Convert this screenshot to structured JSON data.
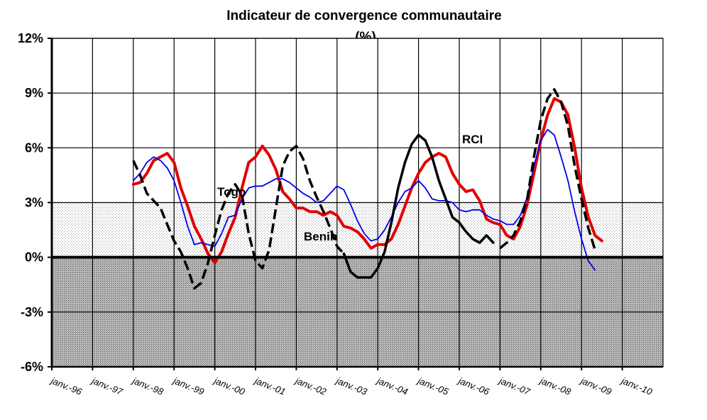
{
  "chart_data": {
    "type": "line",
    "title": "Indicateur de convergence communautaire",
    "subtitle": "(%)",
    "xlabel": "",
    "ylabel": "",
    "x_range": [
      "1996-01",
      "2010-04"
    ],
    "ylim": [
      -6,
      12
    ],
    "yticks": [
      12,
      9,
      6,
      3,
      0,
      -3,
      -6
    ],
    "ytick_labels": [
      "12%",
      "9%",
      "6%",
      "3%",
      "0%",
      "-3%",
      "-6%"
    ],
    "xtick_labels": [
      "janv.-96",
      "janv.-97",
      "janv.-98",
      "janv.-99",
      "janv.-00",
      "janv.-01",
      "janv.-02",
      "janv.-03",
      "janv.-04",
      "janv.-05",
      "janv.-06",
      "janv.-07",
      "janv.-08",
      "janv.-09",
      "janv.-10"
    ],
    "grid": "vertical lines at each year, horizontal lines at each 3%",
    "shaded_bands": [
      {
        "from": 0,
        "to": 3,
        "style": "light dotted"
      },
      {
        "from": -6,
        "to": 0,
        "style": "dark dotted"
      }
    ],
    "annotations": [
      {
        "text": "Togo",
        "series": "black dashed"
      },
      {
        "text": "Benin",
        "series": "red"
      },
      {
        "text": "RCI",
        "series": "black solid"
      }
    ],
    "series": [
      {
        "name": "",
        "color": "#e00000",
        "style": "solid-thick",
        "points": [
          [
            "1998-01",
            4.0
          ],
          [
            "1998-03",
            4.1
          ],
          [
            "1998-05",
            4.6
          ],
          [
            "1998-07",
            5.3
          ],
          [
            "1998-09",
            5.5
          ],
          [
            "1998-11",
            5.7
          ],
          [
            "1999-01",
            5.2
          ],
          [
            "1999-03",
            3.8
          ],
          [
            "1999-05",
            2.8
          ],
          [
            "1999-07",
            1.7
          ],
          [
            "1999-09",
            1.0
          ],
          [
            "1999-11",
            0.2
          ],
          [
            "2000-01",
            -0.3
          ],
          [
            "2000-03",
            0.3
          ],
          [
            "2000-05",
            1.3
          ],
          [
            "2000-07",
            2.2
          ],
          [
            "2000-09",
            3.8
          ],
          [
            "2000-11",
            5.2
          ],
          [
            "2001-01",
            5.5
          ],
          [
            "2001-03",
            6.1
          ],
          [
            "2001-05",
            5.6
          ],
          [
            "2001-07",
            4.8
          ],
          [
            "2001-09",
            3.6
          ],
          [
            "2001-11",
            3.2
          ],
          [
            "2002-01",
            2.7
          ],
          [
            "2002-03",
            2.7
          ],
          [
            "2002-05",
            2.5
          ],
          [
            "2002-07",
            2.5
          ],
          [
            "2002-09",
            2.3
          ],
          [
            "2002-11",
            2.5
          ],
          [
            "2003-01",
            2.3
          ],
          [
            "2003-03",
            1.7
          ],
          [
            "2003-05",
            1.6
          ],
          [
            "2003-07",
            1.4
          ],
          [
            "2003-09",
            1.0
          ],
          [
            "2003-11",
            0.5
          ],
          [
            "2004-01",
            0.7
          ],
          [
            "2004-03",
            0.7
          ],
          [
            "2004-05",
            1.0
          ],
          [
            "2004-07",
            1.8
          ],
          [
            "2004-09",
            2.8
          ],
          [
            "2004-11",
            3.8
          ],
          [
            "2005-01",
            4.6
          ],
          [
            "2005-03",
            5.2
          ],
          [
            "2005-05",
            5.5
          ],
          [
            "2005-07",
            5.7
          ],
          [
            "2005-09",
            5.5
          ],
          [
            "2005-11",
            4.6
          ],
          [
            "2006-01",
            4.0
          ],
          [
            "2006-03",
            3.6
          ],
          [
            "2006-05",
            3.7
          ],
          [
            "2006-07",
            3.1
          ],
          [
            "2006-09",
            2.1
          ],
          [
            "2006-11",
            1.9
          ],
          [
            "2007-01",
            1.8
          ],
          [
            "2007-03",
            1.2
          ],
          [
            "2007-05",
            1.0
          ],
          [
            "2007-07",
            1.7
          ],
          [
            "2007-09",
            2.9
          ],
          [
            "2007-11",
            4.6
          ],
          [
            "2008-01",
            6.4
          ],
          [
            "2008-03",
            7.8
          ],
          [
            "2008-05",
            8.7
          ],
          [
            "2008-07",
            8.5
          ],
          [
            "2008-09",
            7.8
          ],
          [
            "2008-11",
            6.0
          ],
          [
            "2009-01",
            3.8
          ],
          [
            "2009-03",
            2.2
          ],
          [
            "2009-05",
            1.2
          ],
          [
            "2009-07",
            0.9
          ]
        ]
      },
      {
        "name": "",
        "color": "#0000ee",
        "style": "solid-thin",
        "points": [
          [
            "1998-01",
            4.2
          ],
          [
            "1998-03",
            4.6
          ],
          [
            "1998-05",
            5.2
          ],
          [
            "1998-07",
            5.5
          ],
          [
            "1998-09",
            5.3
          ],
          [
            "1998-11",
            4.9
          ],
          [
            "1999-01",
            4.2
          ],
          [
            "1999-03",
            3.0
          ],
          [
            "1999-05",
            1.7
          ],
          [
            "1999-07",
            0.7
          ],
          [
            "1999-09",
            0.8
          ],
          [
            "1999-11",
            0.7
          ],
          [
            "2000-01",
            0.6
          ],
          [
            "2000-03",
            1.3
          ],
          [
            "2000-05",
            2.2
          ],
          [
            "2000-07",
            2.3
          ],
          [
            "2000-09",
            3.2
          ],
          [
            "2000-11",
            3.8
          ],
          [
            "2001-01",
            3.9
          ],
          [
            "2001-03",
            3.9
          ],
          [
            "2001-05",
            4.1
          ],
          [
            "2001-07",
            4.3
          ],
          [
            "2001-09",
            4.3
          ],
          [
            "2001-11",
            4.1
          ],
          [
            "2002-01",
            3.8
          ],
          [
            "2002-03",
            3.5
          ],
          [
            "2002-05",
            3.3
          ],
          [
            "2002-07",
            3.0
          ],
          [
            "2002-09",
            3.1
          ],
          [
            "2002-11",
            3.5
          ],
          [
            "2003-01",
            3.9
          ],
          [
            "2003-03",
            3.7
          ],
          [
            "2003-05",
            2.9
          ],
          [
            "2003-07",
            2.0
          ],
          [
            "2003-09",
            1.3
          ],
          [
            "2003-11",
            0.9
          ],
          [
            "2004-01",
            1.0
          ],
          [
            "2004-03",
            1.5
          ],
          [
            "2004-05",
            2.2
          ],
          [
            "2004-07",
            3.0
          ],
          [
            "2004-09",
            3.6
          ],
          [
            "2004-11",
            3.8
          ],
          [
            "2005-01",
            4.2
          ],
          [
            "2005-03",
            3.8
          ],
          [
            "2005-05",
            3.2
          ],
          [
            "2005-07",
            3.1
          ],
          [
            "2005-09",
            3.1
          ],
          [
            "2005-11",
            3.0
          ],
          [
            "2006-01",
            2.6
          ],
          [
            "2006-03",
            2.5
          ],
          [
            "2006-05",
            2.6
          ],
          [
            "2006-07",
            2.6
          ],
          [
            "2006-09",
            2.3
          ],
          [
            "2006-11",
            2.1
          ],
          [
            "2007-01",
            2.0
          ],
          [
            "2007-03",
            1.8
          ],
          [
            "2007-05",
            1.8
          ],
          [
            "2007-07",
            2.3
          ],
          [
            "2007-09",
            3.3
          ],
          [
            "2007-11",
            5.0
          ],
          [
            "2008-01",
            6.4
          ],
          [
            "2008-03",
            7.0
          ],
          [
            "2008-05",
            6.7
          ],
          [
            "2008-07",
            5.5
          ],
          [
            "2008-09",
            4.2
          ],
          [
            "2008-11",
            2.5
          ],
          [
            "2009-01",
            1.0
          ],
          [
            "2009-03",
            -0.2
          ],
          [
            "2009-05",
            -0.7
          ]
        ]
      },
      {
        "name": "",
        "color": "#000000",
        "style": "dashed",
        "points": [
          [
            "1998-01",
            5.3
          ],
          [
            "1998-03",
            4.5
          ],
          [
            "1998-05",
            3.5
          ],
          [
            "1998-07",
            3.1
          ],
          [
            "1998-09",
            2.7
          ],
          [
            "1998-11",
            1.8
          ],
          [
            "1999-01",
            0.9
          ],
          [
            "1999-03",
            0.3
          ],
          [
            "1999-05",
            -0.6
          ],
          [
            "1999-07",
            -1.7
          ],
          [
            "1999-09",
            -1.4
          ],
          [
            "1999-11",
            -0.3
          ],
          [
            "2000-01",
            1.2
          ],
          [
            "2000-03",
            2.6
          ],
          [
            "2000-05",
            3.5
          ],
          [
            "2000-07",
            4.0
          ],
          [
            "2000-09",
            3.4
          ],
          [
            "2000-11",
            1.3
          ],
          [
            "2001-01",
            -0.2
          ],
          [
            "2001-03",
            -0.6
          ],
          [
            "2001-05",
            0.4
          ],
          [
            "2001-07",
            2.7
          ],
          [
            "2001-09",
            5.0
          ],
          [
            "2001-11",
            5.8
          ],
          [
            "2002-01",
            6.1
          ],
          [
            "2002-03",
            5.4
          ],
          [
            "2002-05",
            4.2
          ],
          [
            "2002-07",
            3.3
          ],
          [
            "2002-09",
            2.5
          ],
          [
            "2002-11",
            1.6
          ],
          [
            "2003-01",
            0.6
          ],
          [
            "2003-03",
            0.2
          ]
        ]
      },
      {
        "name": "",
        "color": "#000000",
        "style": "solid",
        "points": [
          [
            "2003-03",
            0.2
          ],
          [
            "2003-05",
            -0.8
          ],
          [
            "2003-07",
            -1.1
          ],
          [
            "2003-09",
            -1.1
          ],
          [
            "2003-11",
            -1.1
          ],
          [
            "2004-01",
            -0.6
          ],
          [
            "2004-03",
            0.3
          ],
          [
            "2004-05",
            1.9
          ],
          [
            "2004-07",
            3.8
          ],
          [
            "2004-09",
            5.2
          ],
          [
            "2004-11",
            6.2
          ],
          [
            "2005-01",
            6.7
          ],
          [
            "2005-03",
            6.4
          ],
          [
            "2005-05",
            5.5
          ],
          [
            "2005-07",
            4.2
          ],
          [
            "2005-09",
            3.2
          ],
          [
            "2005-11",
            2.2
          ],
          [
            "2006-01",
            1.9
          ],
          [
            "2006-03",
            1.4
          ],
          [
            "2006-05",
            1.0
          ],
          [
            "2006-07",
            0.8
          ],
          [
            "2006-09",
            1.2
          ],
          [
            "2006-11",
            0.8
          ]
        ]
      },
      {
        "name": "",
        "color": "#000000",
        "style": "dashed",
        "points": [
          [
            "2007-01",
            0.5
          ],
          [
            "2007-03",
            0.8
          ],
          [
            "2007-05",
            1.2
          ],
          [
            "2007-07",
            2.0
          ],
          [
            "2007-09",
            3.2
          ],
          [
            "2007-11",
            5.5
          ],
          [
            "2008-01",
            7.5
          ],
          [
            "2008-03",
            8.7
          ],
          [
            "2008-05",
            9.2
          ],
          [
            "2008-07",
            8.5
          ],
          [
            "2008-09",
            7.2
          ],
          [
            "2008-11",
            5.0
          ],
          [
            "2009-01",
            3.2
          ],
          [
            "2009-03",
            1.6
          ],
          [
            "2009-05",
            0.4
          ]
        ]
      }
    ]
  }
}
